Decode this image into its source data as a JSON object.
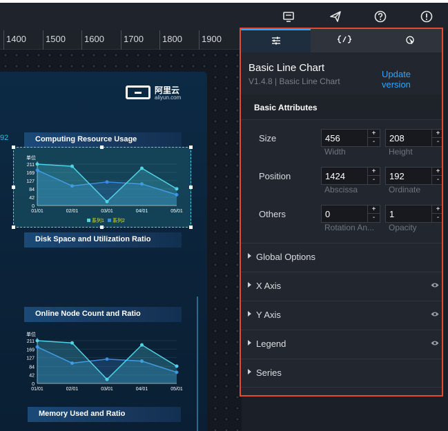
{
  "toolbar": {
    "icons": [
      "monitor-icon",
      "send-icon",
      "help-icon",
      "alert-icon"
    ]
  },
  "ruler": {
    "ticks": [
      "1400",
      "1500",
      "1600",
      "1700",
      "1800",
      "1900"
    ]
  },
  "canvas": {
    "logo": {
      "cn": "阿里云",
      "en": "aliyun.com"
    },
    "side_label": "92",
    "titles": {
      "computing": "Computing Resource Usage",
      "disk": "Disk Space and Utilization Ratio",
      "online": "Online Node Count and Ratio",
      "memory": "Memory Used and Ratio"
    },
    "mini_chart": {
      "unit_label": "单位",
      "y_ticks": [
        "211",
        "169",
        "127",
        "84",
        "42",
        "0"
      ],
      "x_ticks": [
        "01/01",
        "02/01",
        "03/01",
        "04/01",
        "05/01"
      ],
      "legend": [
        "系列1",
        "系列2"
      ],
      "series1": [
        211,
        200,
        20,
        190,
        85
      ],
      "series2": [
        180,
        100,
        120,
        110,
        55
      ]
    }
  },
  "panel": {
    "tabs": [
      {
        "icon": "sliders-icon",
        "active": true
      },
      {
        "icon": "code-icon",
        "active": false
      },
      {
        "icon": "interaction-icon",
        "active": false
      }
    ],
    "title": "Basic Line Chart",
    "version": "V1.4.8 | Basic Line Chart",
    "update_link": "Update version",
    "attributes_header": "Basic Attributes",
    "size": {
      "label": "Size",
      "width": "456",
      "width_label": "Width",
      "height": "208",
      "height_label": "Height"
    },
    "position": {
      "label": "Position",
      "x": "1424",
      "x_label": "Abscissa",
      "y": "192",
      "y_label": "Ordinate"
    },
    "others": {
      "label": "Others",
      "rotation": "0",
      "rotation_label": "Rotation An...",
      "opacity": "1",
      "opacity_label": "Opacity"
    },
    "stepper": {
      "up": "+",
      "down": "-"
    },
    "sections": [
      {
        "label": "Global Options",
        "eye": false
      },
      {
        "label": "X Axis",
        "eye": true
      },
      {
        "label": "Y Axis",
        "eye": true
      },
      {
        "label": "Legend",
        "eye": true
      },
      {
        "label": "Series",
        "eye": false
      }
    ]
  },
  "colors": {
    "accent": "#2ea5ff",
    "highlight_border": "#e84a2f",
    "series1": "#4fd3e6",
    "series2": "#3b8be0"
  }
}
